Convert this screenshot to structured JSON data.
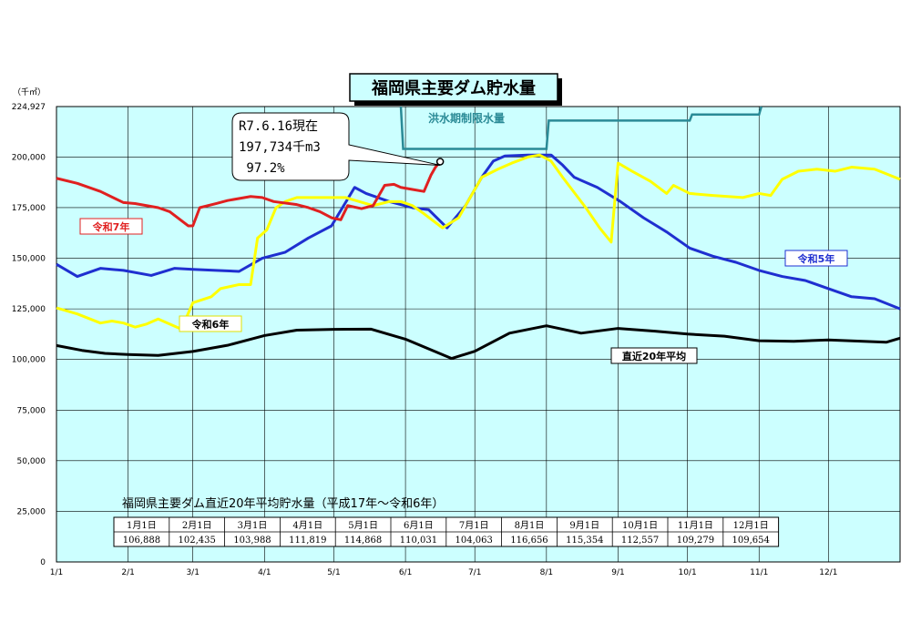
{
  "chart_data": {
    "type": "line",
    "title": "福岡県主要ダム貯水量",
    "unit_label": "（千㎥）",
    "xlabel": "",
    "ylabel": "",
    "ylim": [
      0,
      224927
    ],
    "yticks": [
      "224,927",
      "200,000",
      "175,000",
      "150,000",
      "125,000",
      "100,000",
      "75,000",
      "50,000",
      "25,000",
      "0"
    ],
    "ytick_values": [
      224927,
      200000,
      175000,
      150000,
      125000,
      100000,
      75000,
      50000,
      25000,
      0
    ],
    "xlim": [
      1,
      366
    ],
    "xticks": [
      "1/1",
      "2/1",
      "3/1",
      "4/1",
      "5/1",
      "6/1",
      "7/1",
      "8/1",
      "9/1",
      "10/1",
      "11/1",
      "12/1"
    ],
    "xtick_days": [
      1,
      32,
      60,
      91,
      121,
      152,
      182,
      213,
      244,
      274,
      305,
      335
    ],
    "grid": true,
    "flood_limit": {
      "label": "洪水期制限水量",
      "points": [
        [
          150,
          224927
        ],
        [
          151,
          204000
        ],
        [
          213,
          204000
        ],
        [
          214,
          218000
        ],
        [
          275,
          218000
        ],
        [
          276,
          221000
        ],
        [
          305,
          221000
        ],
        [
          306,
          224927
        ]
      ]
    },
    "series": [
      {
        "name": "令和7年",
        "color": "#e02020",
        "points": [
          [
            1,
            189500
          ],
          [
            10,
            187000
          ],
          [
            20,
            183000
          ],
          [
            30,
            177500
          ],
          [
            35,
            177000
          ],
          [
            45,
            175000
          ],
          [
            50,
            173000
          ],
          [
            58,
            166000
          ],
          [
            60,
            166000
          ],
          [
            63,
            175000
          ],
          [
            70,
            177000
          ],
          [
            75,
            178500
          ],
          [
            85,
            180500
          ],
          [
            90,
            180000
          ],
          [
            95,
            178000
          ],
          [
            105,
            176500
          ],
          [
            110,
            175000
          ],
          [
            115,
            173000
          ],
          [
            120,
            170000
          ],
          [
            124,
            169000
          ],
          [
            127,
            176000
          ],
          [
            133,
            174500
          ],
          [
            138,
            176000
          ],
          [
            143,
            186000
          ],
          [
            147,
            186500
          ],
          [
            150,
            185000
          ],
          [
            155,
            184000
          ],
          [
            160,
            183000
          ],
          [
            163,
            191000
          ],
          [
            165,
            195000
          ],
          [
            167,
            197734
          ]
        ]
      },
      {
        "name": "令和6年",
        "color": "#ffff00",
        "points": [
          [
            1,
            125500
          ],
          [
            10,
            122500
          ],
          [
            20,
            118000
          ],
          [
            25,
            119000
          ],
          [
            30,
            118000
          ],
          [
            35,
            116000
          ],
          [
            40,
            117500
          ],
          [
            45,
            120000
          ],
          [
            55,
            115000
          ],
          [
            60,
            128000
          ],
          [
            68,
            131000
          ],
          [
            72,
            135000
          ],
          [
            80,
            137000
          ],
          [
            85,
            137000
          ],
          [
            88,
            160000
          ],
          [
            92,
            164000
          ],
          [
            96,
            175000
          ],
          [
            100,
            178000
          ],
          [
            105,
            180000
          ],
          [
            112,
            180000
          ],
          [
            120,
            180000
          ],
          [
            126,
            180000
          ],
          [
            132,
            178000
          ],
          [
            138,
            176000
          ],
          [
            145,
            178000
          ],
          [
            150,
            178000
          ],
          [
            155,
            176000
          ],
          [
            160,
            172000
          ],
          [
            168,
            165000
          ],
          [
            175,
            170000
          ],
          [
            180,
            180000
          ],
          [
            185,
            190000
          ],
          [
            192,
            194000
          ],
          [
            198,
            197000
          ],
          [
            205,
            200000
          ],
          [
            210,
            201000
          ],
          [
            215,
            198000
          ],
          [
            220,
            190000
          ],
          [
            230,
            175000
          ],
          [
            236,
            165000
          ],
          [
            241,
            158000
          ],
          [
            244,
            197000
          ],
          [
            250,
            193000
          ],
          [
            258,
            188000
          ],
          [
            265,
            182000
          ],
          [
            268,
            186000
          ],
          [
            275,
            182000
          ],
          [
            285,
            181000
          ],
          [
            298,
            180000
          ],
          [
            305,
            182000
          ],
          [
            310,
            181000
          ],
          [
            315,
            189000
          ],
          [
            322,
            193000
          ],
          [
            330,
            194000
          ],
          [
            338,
            193000
          ],
          [
            345,
            195000
          ],
          [
            355,
            194000
          ],
          [
            366,
            189000
          ]
        ]
      },
      {
        "name": "令和5年",
        "color": "#1f2fd0",
        "points": [
          [
            1,
            147000
          ],
          [
            10,
            141000
          ],
          [
            20,
            145000
          ],
          [
            30,
            144000
          ],
          [
            42,
            141500
          ],
          [
            52,
            145000
          ],
          [
            60,
            144500
          ],
          [
            70,
            144000
          ],
          [
            80,
            143500
          ],
          [
            90,
            150000
          ],
          [
            100,
            153000
          ],
          [
            110,
            160000
          ],
          [
            120,
            166000
          ],
          [
            130,
            185000
          ],
          [
            135,
            182000
          ],
          [
            145,
            178000
          ],
          [
            155,
            175000
          ],
          [
            162,
            174000
          ],
          [
            170,
            165000
          ],
          [
            178,
            176000
          ],
          [
            185,
            190000
          ],
          [
            190,
            198000
          ],
          [
            195,
            200500
          ],
          [
            205,
            201000
          ],
          [
            215,
            201000
          ],
          [
            220,
            196000
          ],
          [
            225,
            190000
          ],
          [
            235,
            185000
          ],
          [
            245,
            178000
          ],
          [
            255,
            170000
          ],
          [
            265,
            163000
          ],
          [
            275,
            155000
          ],
          [
            285,
            151000
          ],
          [
            295,
            148000
          ],
          [
            305,
            144000
          ],
          [
            315,
            141000
          ],
          [
            325,
            139000
          ],
          [
            335,
            135000
          ],
          [
            345,
            131000
          ],
          [
            355,
            130000
          ],
          [
            366,
            125000
          ]
        ]
      },
      {
        "name": "直近20年平均",
        "color": "#000000",
        "points": [
          [
            1,
            106888
          ],
          [
            12,
            104500
          ],
          [
            22,
            103000
          ],
          [
            32,
            102435
          ],
          [
            45,
            102000
          ],
          [
            60,
            103988
          ],
          [
            75,
            107000
          ],
          [
            91,
            111819
          ],
          [
            105,
            114500
          ],
          [
            121,
            114868
          ],
          [
            137,
            115000
          ],
          [
            152,
            110031
          ],
          [
            172,
            100500
          ],
          [
            182,
            104063
          ],
          [
            197,
            113000
          ],
          [
            213,
            116656
          ],
          [
            228,
            113000
          ],
          [
            244,
            115354
          ],
          [
            260,
            114000
          ],
          [
            274,
            112557
          ],
          [
            290,
            111500
          ],
          [
            305,
            109279
          ],
          [
            320,
            109000
          ],
          [
            335,
            109654
          ],
          [
            350,
            109000
          ],
          [
            360,
            108500
          ],
          [
            366,
            110500
          ]
        ]
      }
    ],
    "labels": [
      {
        "text": "令和7年",
        "series": 0
      },
      {
        "text": "令和6年",
        "series": 1
      },
      {
        "text": "令和5年",
        "series": 2
      },
      {
        "text": "直近20年平均",
        "series": 3
      }
    ],
    "callout": {
      "lines": [
        "R7.6.16現在",
        "197,734千m3",
        " 97.2%"
      ],
      "point": [
        167,
        197734
      ]
    },
    "avg_table": {
      "title": "福岡県主要ダム直近20年平均貯水量（平成17年～令和6年）",
      "headers": [
        "1月1日",
        "2月1日",
        "3月1日",
        "4月1日",
        "5月1日",
        "6月1日",
        "7月1日",
        "8月1日",
        "9月1日",
        "10月1日",
        "11月1日",
        "12月1日"
      ],
      "values": [
        "106,888",
        "102,435",
        "103,988",
        "111,819",
        "114,868",
        "110,031",
        "104,063",
        "116,656",
        "115,354",
        "112,557",
        "109,279",
        "109,654"
      ]
    }
  }
}
